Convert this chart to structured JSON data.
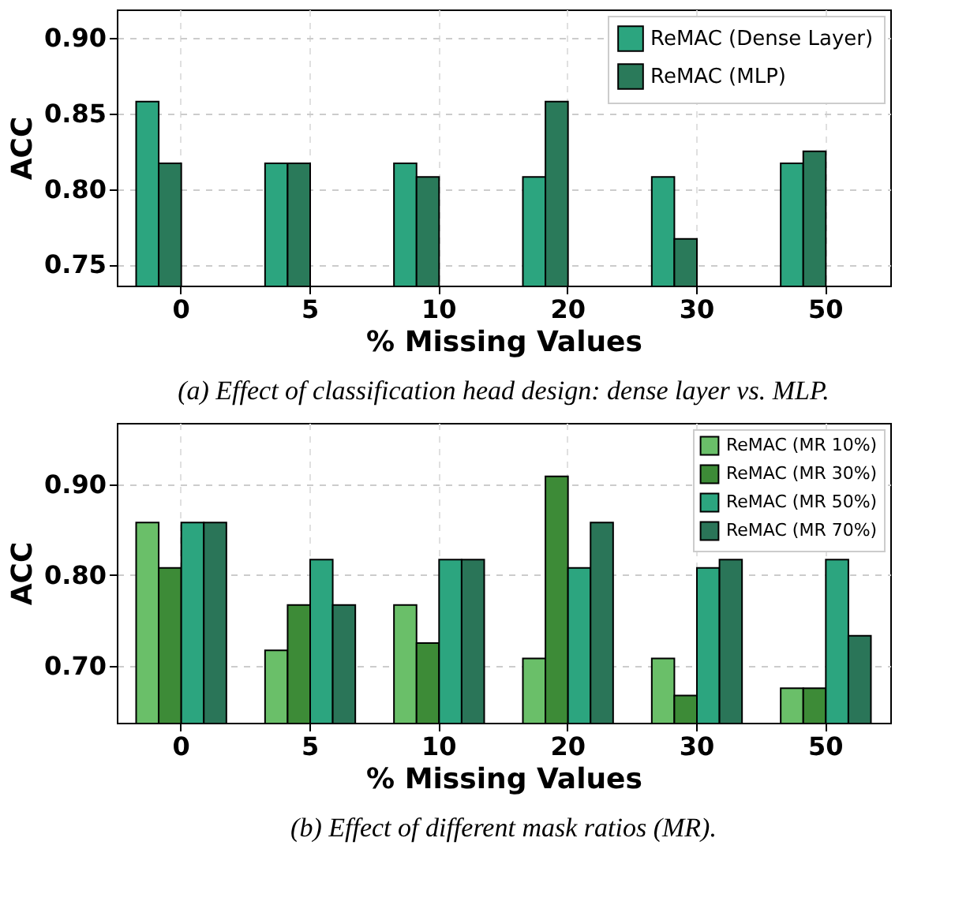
{
  "chart_data": [
    {
      "type": "bar",
      "categories": [
        "0",
        "5",
        "10",
        "20",
        "30",
        "50"
      ],
      "xlabel": "% Missing Values",
      "ylabel": "ACC",
      "ylim": [
        0.736,
        0.919
      ],
      "yticks": [
        0.75,
        {
          "value": 0.8,
          "label": "0.80"
        },
        0.85,
        {
          "value": 0.9,
          "label": "0.90"
        }
      ],
      "grid": true,
      "legend": "top right",
      "series": [
        {
          "name": "ReMAC (Dense Layer)",
          "color": "#2ca57f",
          "values": [
            0.858,
            0.817,
            0.817,
            0.808,
            0.808,
            0.817
          ]
        },
        {
          "name": "ReMAC (MLP)",
          "color": "#2a7a5a",
          "values": [
            0.817,
            0.817,
            0.808,
            0.858,
            0.767,
            0.825
          ]
        }
      ],
      "annotations": [
        "(a) Effect of classification head design: dense layer vs. MLP."
      ]
    },
    {
      "type": "bar",
      "categories": [
        "0",
        "5",
        "10",
        "20",
        "30",
        "50"
      ],
      "xlabel": "% Missing Values",
      "ylabel": "ACC",
      "ylim": [
        0.637,
        0.968
      ],
      "yticks": [
        {
          "value": 0.7,
          "label": "0.70"
        },
        {
          "value": 0.8,
          "label": "0.80"
        },
        {
          "value": 0.9,
          "label": "0.90"
        }
      ],
      "grid": true,
      "legend": "top right",
      "series": [
        {
          "name": "ReMAC (MR 10%)",
          "color": "#6abf69",
          "values": [
            0.858,
            0.717,
            0.767,
            0.708,
            0.708,
            0.675
          ]
        },
        {
          "name": "ReMAC (MR 30%)",
          "color": "#3d8b37",
          "values": [
            0.808,
            0.767,
            0.725,
            0.909,
            0.667,
            0.675
          ]
        },
        {
          "name": "ReMAC (MR 50%)",
          "color": "#2ca57f",
          "values": [
            0.858,
            0.817,
            0.817,
            0.808,
            0.808,
            0.817
          ]
        },
        {
          "name": "ReMAC (MR 70%)",
          "color": "#2a7558",
          "values": [
            0.858,
            0.767,
            0.817,
            0.858,
            0.817,
            0.733
          ]
        }
      ],
      "annotations": [
        "(b) Effect of different mask ratios (MR)."
      ]
    }
  ]
}
